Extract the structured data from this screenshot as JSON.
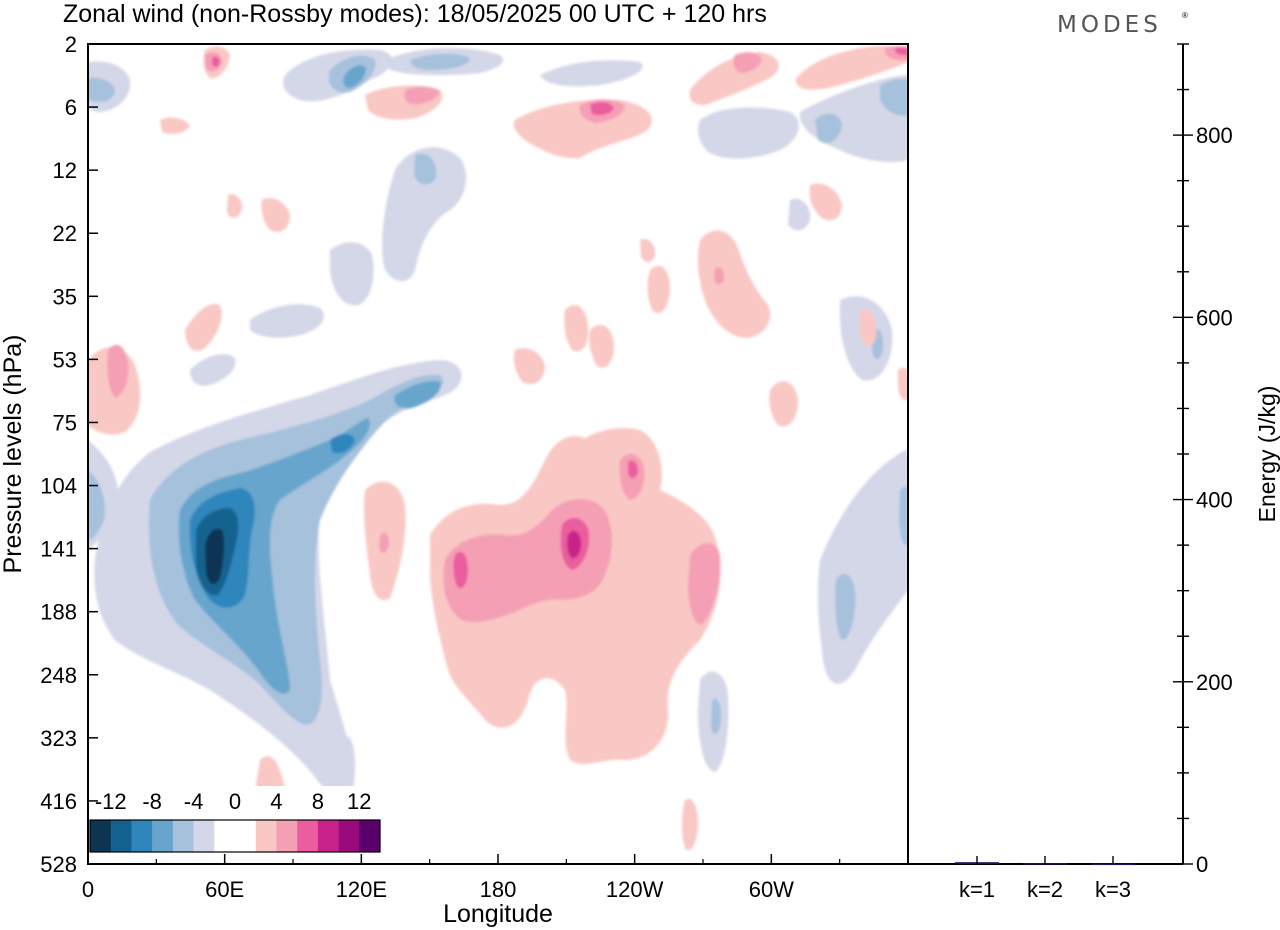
{
  "title": "Zonal wind (non-Rossby modes):  18/05/2025  00 UTC  + 120 hrs",
  "logo": "MODES",
  "chart_data": [
    {
      "type": "heatmap",
      "title": "Zonal wind (non-Rossby modes):  18/05/2025  00 UTC  + 120 hrs",
      "xlabel": "Longitude",
      "ylabel": "Pressure levels (hPa)",
      "x_ticks": [
        "0",
        "60E",
        "120E",
        "180",
        "120W",
        "60W"
      ],
      "x_tick_values": [
        0,
        60,
        120,
        180,
        240,
        300
      ],
      "xlim": [
        0,
        360
      ],
      "y_ticks": [
        "2",
        "6",
        "12",
        "22",
        "35",
        "53",
        "75",
        "104",
        "141",
        "188",
        "248",
        "323",
        "416",
        "528"
      ],
      "colorbar": {
        "labels": [
          "-12",
          "-8",
          "-4",
          "0",
          "4",
          "8",
          "12"
        ],
        "levels": [
          -14,
          -12,
          -10,
          -8,
          -6,
          -4,
          -2,
          0,
          2,
          4,
          6,
          8,
          10,
          12,
          14
        ],
        "colors": [
          "#0d3552",
          "#13628f",
          "#2f86bd",
          "#68a5cc",
          "#a6c1dc",
          "#d4d7e8",
          "#ffffff",
          "#ffffff",
          "#f9c8c4",
          "#f59fb5",
          "#ea5d9e",
          "#c9228b",
          "#9a0a7d",
          "#5a006b"
        ]
      },
      "features": [
        {
          "name": "negative jet core",
          "lon": 57,
          "level": "141",
          "value": -13
        },
        {
          "name": "positive maximum",
          "lon": 205,
          "level": "141",
          "value": 8
        },
        {
          "name": "positive maximum",
          "lon": 165,
          "level": "141",
          "value": 7
        }
      ]
    },
    {
      "type": "bar",
      "categories": [
        "k=1",
        "k=2",
        "k=3"
      ],
      "values": [
        2,
        1,
        0.5
      ],
      "ylabel": "Energy (J/kg)",
      "y_ticks": [
        "0",
        "200",
        "400",
        "600",
        "800"
      ],
      "ylim": [
        0,
        900
      ],
      "bar_color": "#1b1464"
    }
  ]
}
